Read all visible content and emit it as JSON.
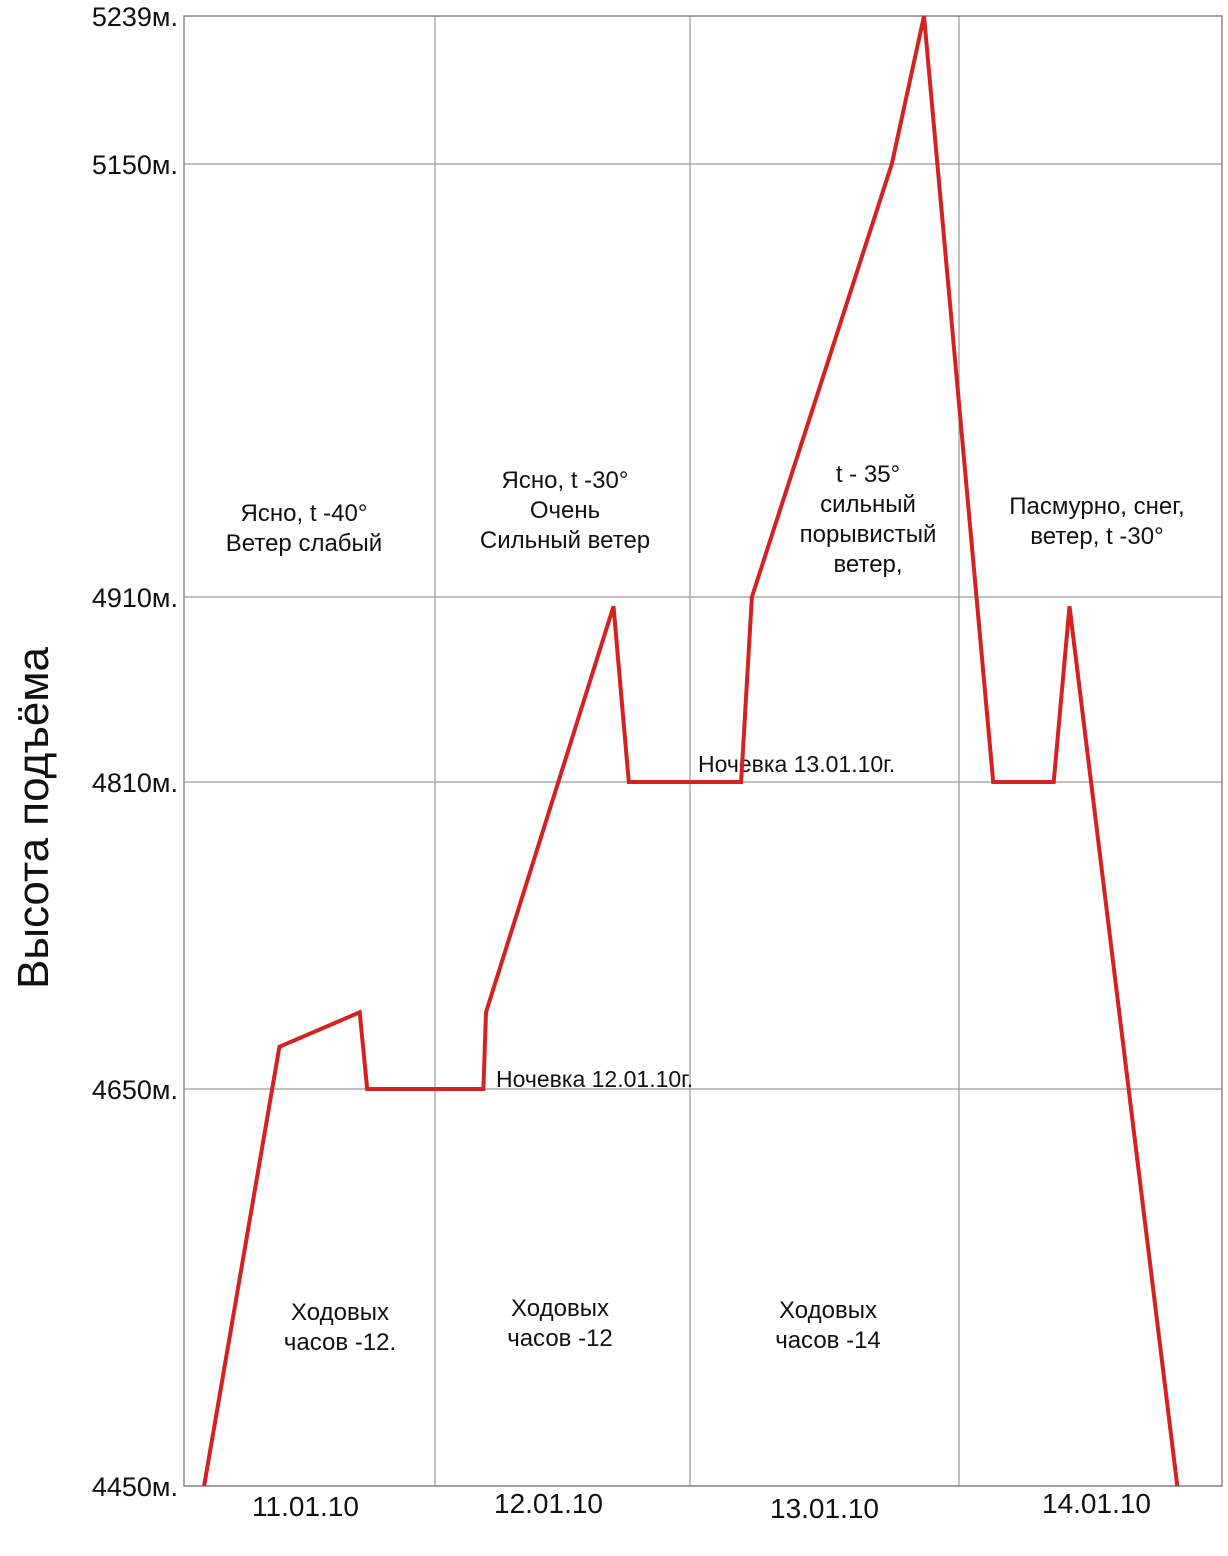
{
  "chart_data": {
    "type": "line",
    "title": "",
    "ylabel": "Высота подъёма",
    "xlabel": "",
    "ylim": [
      4450,
      5239
    ],
    "yticks": [
      {
        "value": 4450,
        "label": "4450м."
      },
      {
        "value": 4650,
        "label": "4650м."
      },
      {
        "value": 4810,
        "label": "4810м."
      },
      {
        "value": 4910,
        "label": "4910м."
      },
      {
        "value": 5150,
        "label": "5150м."
      },
      {
        "value": 5239,
        "label": "5239м."
      }
    ],
    "xlim": [
      0,
      4
    ],
    "categories": [
      "11.01.10",
      "12.01.10",
      "13.01.10",
      "14.01.10"
    ],
    "grid": true,
    "series": [
      {
        "color": "#d42121",
        "points": [
          {
            "x": 0.08,
            "y": 4450
          },
          {
            "x": 0.38,
            "y": 4672
          },
          {
            "x": 0.7,
            "y": 4690
          },
          {
            "x": 0.73,
            "y": 4650
          },
          {
            "x": 1.19,
            "y": 4650
          },
          {
            "x": 1.2,
            "y": 4690
          },
          {
            "x": 1.7,
            "y": 4905
          },
          {
            "x": 1.76,
            "y": 4810
          },
          {
            "x": 2.19,
            "y": 4810
          },
          {
            "x": 2.23,
            "y": 4910
          },
          {
            "x": 2.75,
            "y": 5150
          },
          {
            "x": 2.87,
            "y": 5239
          },
          {
            "x": 3.13,
            "y": 4810
          },
          {
            "x": 3.36,
            "y": 4810
          },
          {
            "x": 3.42,
            "y": 4905
          },
          {
            "x": 3.83,
            "y": 4450
          }
        ]
      }
    ],
    "annotations": {
      "weather": [
        {
          "lines": [
            "Ясно, t -40°",
            "Ветер слабый"
          ]
        },
        {
          "lines": [
            "Ясно,  t -30°",
            "Очень",
            "Сильный ветер"
          ]
        },
        {
          "lines": [
            "t - 35°",
            "сильный",
            "порывистый",
            "ветер,"
          ]
        },
        {
          "lines": [
            "Пасмурно, снег,",
            "ветер, t -30°"
          ]
        }
      ],
      "hours": [
        {
          "lines": [
            "Ходовых",
            "часов -12."
          ]
        },
        {
          "lines": [
            "Ходовых",
            "часов -12"
          ]
        },
        {
          "lines": [
            "Ходовых",
            "часов -14"
          ]
        }
      ],
      "overnights": [
        {
          "text": "Ночевка  12.01.10г."
        },
        {
          "text": "Ночевка 13.01.10г."
        }
      ]
    }
  }
}
